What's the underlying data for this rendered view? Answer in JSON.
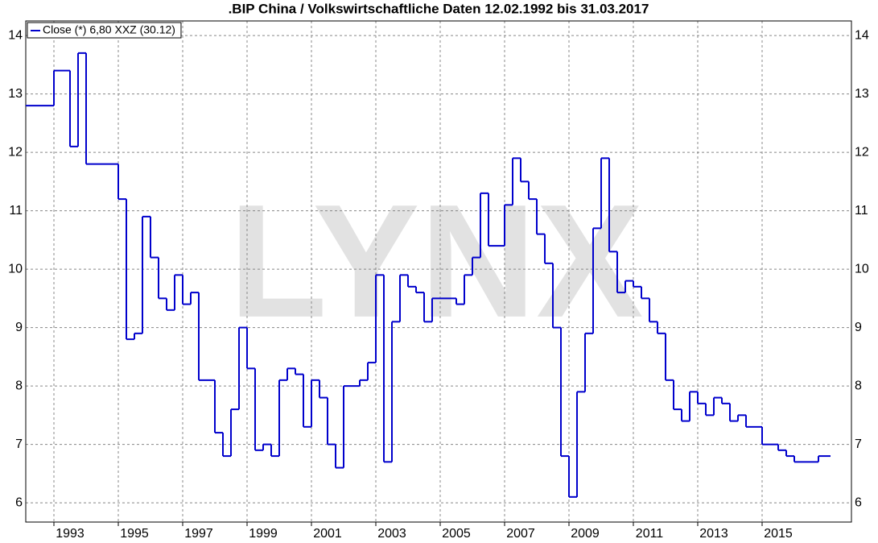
{
  "chart_data": {
    "type": "step-line",
    "title": ".BIP China / Volkswirtschaftliche Daten 12.02.1992 bis 31.03.2017",
    "watermark": "LYNX",
    "series": [
      {
        "name": "Close (*) 6,80 XXZ (30.12)",
        "color": "#0000cc",
        "x": [
          1992.125,
          1993.0,
          1993.5,
          1993.75,
          1994.0,
          1995.0,
          1995.25,
          1995.5,
          1995.75,
          1996.0,
          1996.25,
          1996.5,
          1996.75,
          1997.0,
          1997.25,
          1997.5,
          1998.0,
          1998.25,
          1998.5,
          1998.75,
          1999.0,
          1999.25,
          1999.5,
          1999.75,
          2000.0,
          2000.25,
          2000.5,
          2000.75,
          2001.0,
          2001.25,
          2001.5,
          2001.75,
          2002.0,
          2002.5,
          2002.75,
          2003.0,
          2003.25,
          2003.5,
          2003.75,
          2004.0,
          2004.25,
          2004.5,
          2004.75,
          2005.5,
          2005.75,
          2006.0,
          2006.25,
          2006.5,
          2007.0,
          2007.25,
          2007.5,
          2007.75,
          2008.0,
          2008.25,
          2008.5,
          2008.75,
          2009.0,
          2009.25,
          2009.5,
          2009.75,
          2010.0,
          2010.25,
          2010.5,
          2010.75,
          2011.0,
          2011.25,
          2011.5,
          2011.75,
          2012.0,
          2012.25,
          2012.5,
          2012.75,
          2013.0,
          2013.25,
          2013.5,
          2013.75,
          2014.0,
          2014.25,
          2014.5,
          2015.0,
          2015.5,
          2015.75,
          2016.0,
          2016.75
        ],
        "values": [
          12.8,
          13.4,
          12.1,
          13.7,
          11.8,
          11.2,
          8.8,
          8.9,
          10.9,
          10.2,
          9.5,
          9.3,
          9.9,
          9.4,
          9.6,
          8.1,
          7.2,
          6.8,
          7.6,
          9.0,
          8.3,
          6.9,
          7.0,
          6.8,
          8.1,
          8.3,
          8.2,
          7.3,
          8.1,
          7.8,
          7.0,
          6.6,
          8.0,
          8.1,
          8.4,
          9.9,
          6.7,
          9.1,
          9.9,
          9.7,
          9.6,
          9.1,
          9.5,
          9.4,
          9.9,
          10.2,
          11.3,
          10.4,
          11.1,
          11.9,
          11.5,
          11.2,
          10.6,
          10.1,
          9.0,
          6.8,
          6.1,
          7.9,
          8.9,
          10.7,
          11.9,
          10.3,
          9.6,
          9.8,
          9.7,
          9.5,
          9.1,
          8.9,
          8.1,
          7.6,
          7.4,
          7.9,
          7.7,
          7.5,
          7.8,
          7.7,
          7.4,
          7.5,
          7.3,
          7.0,
          6.9,
          6.8,
          6.7,
          6.8
        ]
      }
    ],
    "xlim": [
      1992.125,
      2017.775
    ],
    "xticks": [
      1993,
      1995,
      1997,
      1999,
      2001,
      2003,
      2005,
      2007,
      2009,
      2011,
      2013,
      2015
    ],
    "ylim": [
      5.67,
      14.25
    ],
    "yticks": [
      6,
      7,
      8,
      9,
      10,
      11,
      12,
      13,
      14
    ],
    "grid": true,
    "legend": "top-left"
  }
}
